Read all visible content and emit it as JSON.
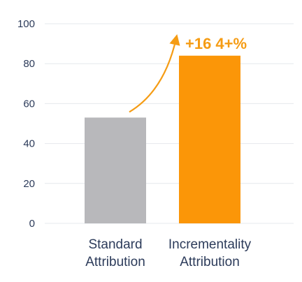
{
  "chart_data": {
    "type": "bar",
    "categories": [
      [
        "Standard",
        "Attribution"
      ],
      [
        "Incrementality",
        "Attribution"
      ]
    ],
    "values": [
      53,
      84
    ],
    "colors": [
      "#b8b8bb",
      "#fb9608"
    ],
    "annotation": "+16 4+%",
    "annotation_color": "#f59c14",
    "arrow": "from the first bar to the second bar",
    "ylim": [
      0,
      100
    ],
    "yticks": [
      0,
      20,
      40,
      60,
      80,
      100
    ],
    "grid": true,
    "legend": "none"
  }
}
